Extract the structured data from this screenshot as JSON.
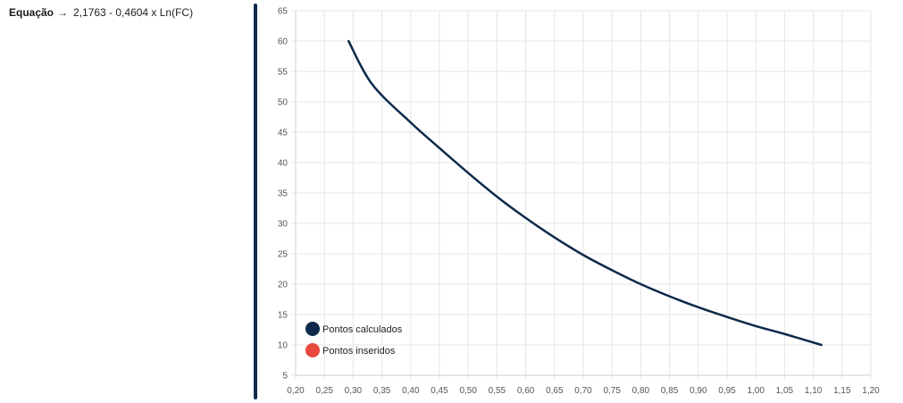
{
  "equation": {
    "label": "Equação",
    "arrow": "→",
    "value": "2,1763 - 0,4604 x Ln(FC)"
  },
  "colors": {
    "calculated": "#0d2a4a",
    "inserted": "#e8473d",
    "grid": "#e6e6e6",
    "axis": "#cfcfcf",
    "divider": "#0d2a4a"
  },
  "chart_data": {
    "type": "line",
    "xlim": [
      0.2,
      1.2
    ],
    "ylim": [
      5,
      65
    ],
    "x_ticks": [
      "0,20",
      "0,25",
      "0,30",
      "0,35",
      "0,40",
      "0,45",
      "0,50",
      "0,55",
      "0,60",
      "0,65",
      "0,70",
      "0,75",
      "0,80",
      "0,85",
      "0,90",
      "0,95",
      "1,00",
      "1,05",
      "1,10",
      "1,15",
      "1,20"
    ],
    "y_ticks": [
      "5",
      "10",
      "15",
      "20",
      "25",
      "30",
      "35",
      "40",
      "45",
      "50",
      "55",
      "60",
      "65"
    ],
    "grid": true,
    "legend": {
      "placement": "bottom-left",
      "items": [
        {
          "label": "Pontos calculados",
          "color_key": "calculated"
        },
        {
          "label": "Pontos inseridos",
          "color_key": "inserted"
        }
      ]
    },
    "series": [
      {
        "name": "Pontos calculados",
        "points": [
          [
            0.292,
            60
          ],
          [
            0.333,
            52.9
          ],
          [
            0.4,
            46.6
          ],
          [
            0.45,
            42.4
          ],
          [
            0.5,
            38.3
          ],
          [
            0.55,
            34.4
          ],
          [
            0.6,
            30.9
          ],
          [
            0.65,
            27.7
          ],
          [
            0.7,
            24.8
          ],
          [
            0.75,
            22.3
          ],
          [
            0.8,
            20.0
          ],
          [
            0.85,
            18.0
          ],
          [
            0.9,
            16.2
          ],
          [
            0.95,
            14.6
          ],
          [
            1.0,
            13.1
          ],
          [
            1.05,
            11.8
          ],
          [
            1.114,
            10
          ]
        ]
      },
      {
        "name": "Pontos inseridos",
        "points": []
      }
    ]
  }
}
